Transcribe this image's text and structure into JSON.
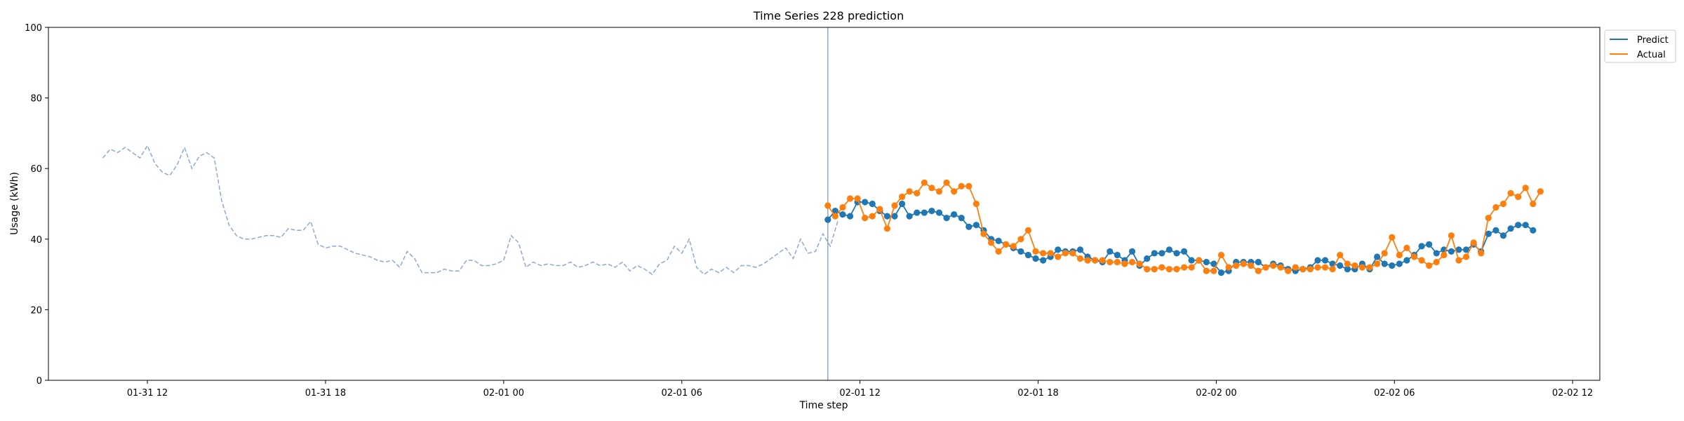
{
  "chart_data": {
    "type": "line",
    "title": "Time Series 228 prediction",
    "xlabel": "Time step",
    "ylabel": "Usage (kWh)",
    "ylim": [
      0,
      100
    ],
    "yticks": [
      0,
      20,
      40,
      60,
      80,
      100
    ],
    "xlim": [
      "01-31 08:40",
      "02-02 12:55"
    ],
    "xticks": [
      "01-31 12",
      "01-31 18",
      "02-01 00",
      "02-01 06",
      "02-01 12",
      "02-01 18",
      "02-02 00",
      "02-02 06",
      "02-02 12"
    ],
    "xtick_times": [
      "01-31 12:00",
      "01-31 18:00",
      "02-01 00:00",
      "02-01 06:00",
      "02-01 12:00",
      "02-01 18:00",
      "02-02 00:00",
      "02-02 06:00",
      "02-02 12:00"
    ],
    "grid": false,
    "legend_position": "outside-top-right",
    "forecast_start": "02-01 10:55",
    "interval_minutes": 15,
    "colors": {
      "history": "#8da9cf",
      "predict": "#1f77b4",
      "actual": "#ff7f0e",
      "divider": "#8da9cf"
    },
    "history": {
      "start": "01-31 10:30",
      "values": [
        63,
        65.5,
        64.5,
        66,
        64.5,
        63,
        66.5,
        61.5,
        59,
        58,
        61,
        66,
        60,
        63.5,
        64.5,
        63,
        51,
        44,
        41,
        40,
        40,
        40.5,
        41,
        41,
        40.5,
        43,
        42.5,
        42.5,
        45,
        38.5,
        37.5,
        38,
        38,
        37,
        36,
        35.5,
        35,
        34,
        33.5,
        34,
        32,
        36.5,
        34.5,
        30.5,
        30.5,
        30.5,
        31.5,
        31,
        31,
        34,
        34,
        32.5,
        32.5,
        33,
        34,
        41,
        39,
        32,
        33.5,
        32.5,
        33,
        32.5,
        32.5,
        33.5,
        32,
        32.5,
        33.5,
        32.5,
        33,
        32,
        33.5,
        31,
        32.5,
        31.5,
        30,
        33,
        34,
        38,
        36,
        40,
        32,
        30,
        31.5,
        30.5,
        32,
        30.5,
        32.5,
        32.5,
        32,
        33,
        34.5,
        36,
        37.5,
        34.5,
        40,
        36,
        36.5,
        41.5,
        38,
        45
      ]
    },
    "series": [
      {
        "name": "Predict",
        "start": "02-01 10:55",
        "values": [
          45.5,
          48,
          47,
          46.5,
          50.5,
          50.5,
          50,
          48,
          46.5,
          46.5,
          50,
          46.5,
          47.5,
          47.5,
          48,
          47.5,
          46,
          47,
          46,
          43.5,
          44,
          42.5,
          40,
          39.5,
          38.5,
          37.5,
          36.5,
          35.5,
          34.5,
          34,
          35,
          37,
          36.5,
          36.5,
          37,
          35,
          34,
          33.5,
          36.5,
          35.5,
          34,
          36.5,
          32.5,
          34.5,
          36,
          36,
          37,
          36,
          36.5,
          34,
          34,
          33.5,
          33,
          30.5,
          31,
          33.5,
          33.5,
          33.5,
          33.5,
          32,
          33,
          32.5,
          31.5,
          31,
          31.5,
          32,
          34,
          34,
          33,
          32.5,
          31.5,
          31.5,
          33,
          31.5,
          35,
          33,
          32.5,
          33,
          34,
          35.5,
          38,
          38.5,
          36,
          37,
          36.5,
          37,
          37,
          38.5,
          36.5,
          41.5,
          42.5,
          41,
          43,
          44,
          44,
          42.5
        ]
      },
      {
        "name": "Actual",
        "start": "02-01 10:55",
        "values": [
          49.5,
          46.5,
          49,
          51.5,
          51.5,
          46,
          46.5,
          48.5,
          43,
          49.5,
          52,
          53.5,
          53,
          56,
          54.5,
          53.5,
          56,
          53.5,
          55,
          55,
          50,
          41.5,
          39,
          36.5,
          38.5,
          38,
          40,
          42.5,
          36.5,
          36,
          36,
          35,
          36,
          36,
          34.5,
          34,
          34,
          34,
          33.5,
          33.5,
          33,
          33.5,
          33,
          31.5,
          31.5,
          32,
          31.5,
          31.5,
          32,
          32,
          34,
          31,
          31,
          35.5,
          32,
          32.5,
          33,
          32.5,
          31,
          32,
          32.5,
          32,
          31,
          32,
          31.5,
          31.5,
          32,
          32,
          31.5,
          35.5,
          33,
          32.5,
          32,
          32,
          33,
          36,
          40.5,
          35.5,
          37.5,
          35,
          34,
          32.5,
          33.5,
          35.5,
          41,
          34,
          35,
          39,
          36,
          46,
          49,
          50,
          53,
          52,
          54.5,
          50,
          53.5
        ]
      }
    ]
  }
}
